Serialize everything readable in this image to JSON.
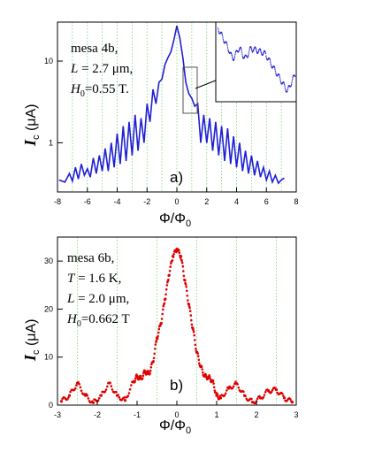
{
  "chart_data": [
    {
      "type": "line",
      "panel_label": "a)",
      "xlabel": "Φ/Φ",
      "xlabel_sub": "0",
      "ylabel": "I",
      "ylabel_sub": "c",
      "ylabel_unit": " (μA)",
      "xlim": [
        -8,
        8
      ],
      "ylim": [
        0.25,
        30
      ],
      "yscale": "log",
      "xticks": [
        -8,
        -6,
        -4,
        -2,
        0,
        2,
        4,
        6,
        8
      ],
      "yticks": [
        1,
        10
      ],
      "grid": "vertical dotted at integer x",
      "color": "#1f1fd6",
      "annotation": {
        "line1": "mesa 4b,",
        "line2_var": "L",
        "line2_rest": " = 2.7 μm,",
        "line3_var": "H",
        "line3_sub": "0",
        "line3_rest": "=0.55 T."
      },
      "inset": "zoom of the shoulder near Φ/Φ₀ = 1",
      "series": [
        {
          "x": [
            -7.9,
            -7.5,
            -7.2,
            -7.0,
            -6.8,
            -6.6,
            -6.4,
            -6.2,
            -6.0,
            -5.8,
            -5.6,
            -5.4,
            -5.2,
            -5.0,
            -4.8,
            -4.6,
            -4.4,
            -4.2,
            -4.0,
            -3.8,
            -3.6,
            -3.4,
            -3.2,
            -3.0,
            -2.8,
            -2.6,
            -2.4,
            -2.2,
            -2.0,
            -1.8,
            -1.6,
            -1.4,
            -1.2,
            -1.0,
            -0.8,
            -0.6,
            -0.4,
            -0.2,
            0.0,
            0.2,
            0.4,
            0.6,
            0.8,
            1.0,
            1.2,
            1.4,
            1.6,
            1.8,
            2.0,
            2.2,
            2.4,
            2.6,
            2.8,
            3.0,
            3.2,
            3.4,
            3.6,
            3.8,
            4.0,
            4.2,
            4.4,
            4.6,
            4.8,
            5.0,
            5.2,
            5.4,
            5.6,
            5.8,
            6.0,
            6.2,
            6.4,
            6.6,
            6.8,
            7.0,
            7.2
          ],
          "y": [
            0.35,
            0.33,
            0.42,
            0.34,
            0.5,
            0.36,
            0.55,
            0.4,
            0.48,
            0.38,
            0.65,
            0.42,
            0.7,
            0.45,
            0.85,
            0.45,
            1.0,
            0.5,
            1.3,
            0.55,
            1.6,
            0.6,
            1.8,
            0.7,
            2.2,
            0.8,
            2.0,
            1.0,
            3.0,
            1.8,
            4.5,
            3.0,
            5.5,
            6.0,
            9.0,
            11.0,
            13.0,
            18.0,
            27.0,
            19.0,
            11.0,
            5.5,
            4.0,
            3.5,
            2.8,
            3.0,
            1.0,
            2.2,
            1.0,
            2.0,
            0.8,
            1.8,
            0.7,
            1.6,
            0.6,
            1.5,
            0.55,
            1.2,
            0.5,
            1.0,
            0.45,
            0.8,
            0.42,
            0.7,
            0.4,
            0.6,
            0.38,
            0.5,
            0.35,
            0.45,
            0.33,
            0.4,
            0.32,
            0.35,
            0.37
          ]
        }
      ]
    },
    {
      "type": "scatter",
      "panel_label": "b)",
      "xlabel": "Φ/Φ",
      "xlabel_sub": "0",
      "ylabel": "I",
      "ylabel_sub": "c",
      "ylabel_unit": " (μA)",
      "xlim": [
        -3,
        3
      ],
      "ylim": [
        0,
        35
      ],
      "xticks": [
        -3,
        -2,
        -1,
        0,
        1,
        2,
        3
      ],
      "yticks": [
        0,
        10,
        20,
        30
      ],
      "grid": "vertical dotted at half-integer x",
      "color": "#e00000",
      "annotation": {
        "line1": "mesa 6b,",
        "line2_var": "T",
        "line2_rest": " = 1.6 K,",
        "line3_var": "L",
        "line3_rest": " = 2.0 μm,",
        "line4_var": "H",
        "line4_sub": "0",
        "line4_rest": "=0.662 T"
      },
      "series": [
        {
          "x": [
            -2.9,
            -2.7,
            -2.5,
            -2.3,
            -2.1,
            -1.9,
            -1.7,
            -1.5,
            -1.3,
            -1.1,
            -1.0,
            -0.9,
            -0.8,
            -0.7,
            -0.6,
            -0.5,
            -0.4,
            -0.3,
            -0.2,
            -0.1,
            0.0,
            0.1,
            0.2,
            0.3,
            0.4,
            0.5,
            0.6,
            0.7,
            0.8,
            0.9,
            1.0,
            1.1,
            1.3,
            1.5,
            1.7,
            1.9,
            2.1,
            2.3,
            2.5,
            2.7,
            2.9
          ],
          "y": [
            0.8,
            2.0,
            4.6,
            2.0,
            0.5,
            2.0,
            4.6,
            2.0,
            1.0,
            4.8,
            6.0,
            5.5,
            7.0,
            6.5,
            9.0,
            14.0,
            17.0,
            22.0,
            27.0,
            31.0,
            32.5,
            31.0,
            26.0,
            21.0,
            16.0,
            11.0,
            8.0,
            6.0,
            5.8,
            5.0,
            2.0,
            1.5,
            3.5,
            4.5,
            2.0,
            0.6,
            1.5,
            3.0,
            3.2,
            1.5,
            0.6
          ]
        }
      ]
    }
  ]
}
